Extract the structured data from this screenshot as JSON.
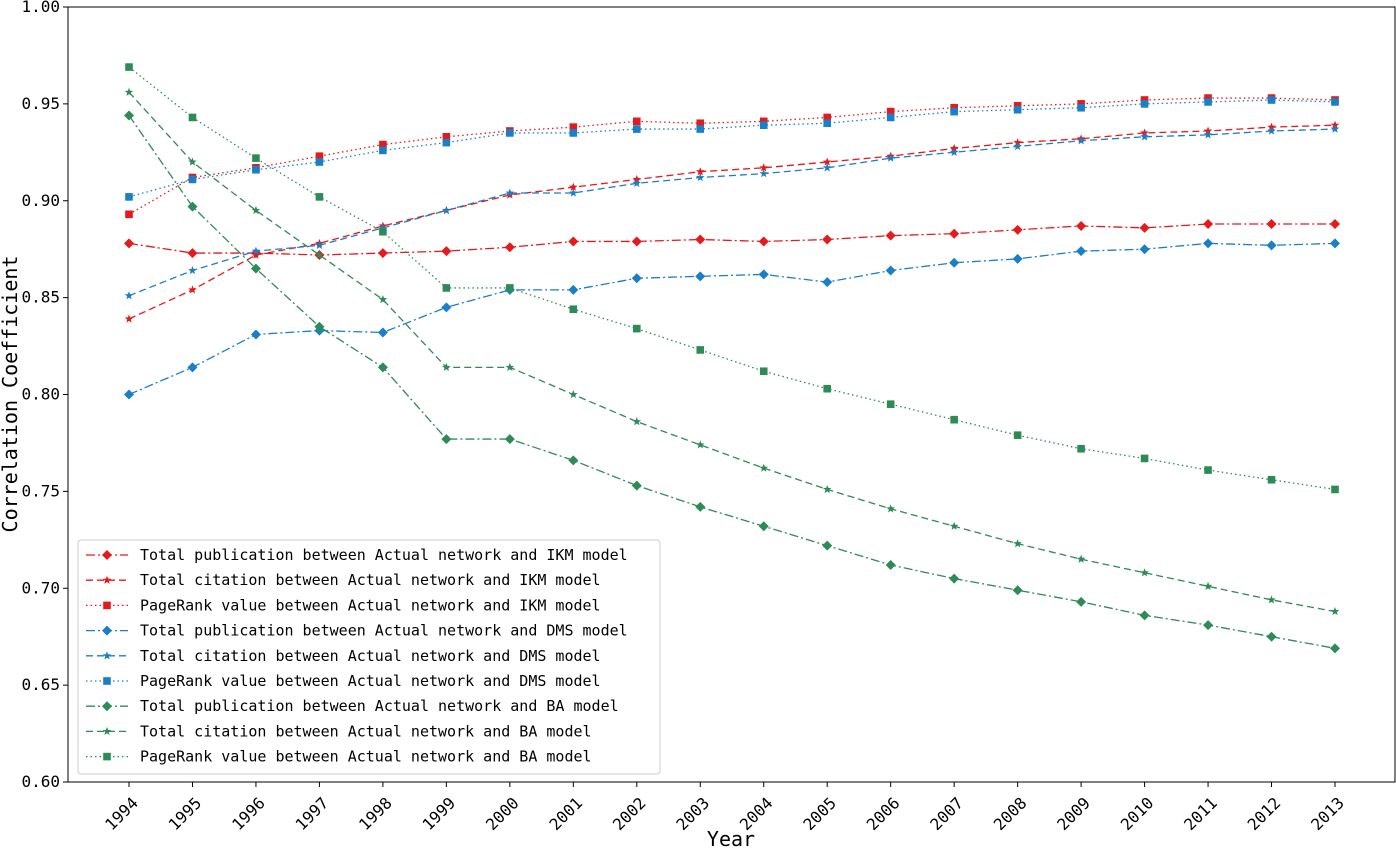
{
  "chart_data": {
    "type": "line",
    "xlabel": "Year",
    "ylabel": "Correlation Coefficient",
    "ylim": [
      0.6,
      1.0
    ],
    "yticks": [
      "0.60",
      "0.65",
      "0.70",
      "0.75",
      "0.80",
      "0.85",
      "0.90",
      "0.95",
      "1.00"
    ],
    "ytick_values": [
      0.6,
      0.65,
      0.7,
      0.75,
      0.8,
      0.85,
      0.9,
      0.95,
      1.0
    ],
    "categories": [
      "1994",
      "1995",
      "1996",
      "1997",
      "1998",
      "1999",
      "2000",
      "2001",
      "2002",
      "2003",
      "2004",
      "2005",
      "2006",
      "2007",
      "2008",
      "2009",
      "2010",
      "2011",
      "2012",
      "2013"
    ],
    "grid": false,
    "legend_position": "lower-left",
    "series": [
      {
        "name": "Total publication between Actual network and IKM model",
        "color": "#e41a1c",
        "dash": "dashdot",
        "marker": "diamond",
        "values": [
          0.878,
          0.873,
          0.873,
          0.872,
          0.873,
          0.874,
          0.876,
          0.879,
          0.879,
          0.88,
          0.879,
          0.88,
          0.882,
          0.883,
          0.885,
          0.887,
          0.886,
          0.888,
          0.888,
          0.888
        ]
      },
      {
        "name": "Total citation between Actual network and IKM model",
        "color": "#e41a1c",
        "dash": "dashed",
        "marker": "star",
        "values": [
          0.839,
          0.854,
          0.872,
          0.878,
          0.887,
          0.895,
          0.903,
          0.907,
          0.911,
          0.915,
          0.917,
          0.92,
          0.923,
          0.927,
          0.93,
          0.932,
          0.935,
          0.936,
          0.938,
          0.939
        ]
      },
      {
        "name": "PageRank value between Actual network and IKM model",
        "color": "#e41a1c",
        "dash": "dotted",
        "marker": "square",
        "values": [
          0.893,
          0.912,
          0.917,
          0.923,
          0.929,
          0.933,
          0.936,
          0.938,
          0.941,
          0.94,
          0.941,
          0.943,
          0.946,
          0.948,
          0.949,
          0.95,
          0.952,
          0.953,
          0.953,
          0.952
        ]
      },
      {
        "name": "Total publication between Actual network and DMS model",
        "color": "#1a7fc7",
        "dash": "dashdot",
        "marker": "diamond",
        "values": [
          0.8,
          0.814,
          0.831,
          0.833,
          0.832,
          0.845,
          0.854,
          0.854,
          0.86,
          0.861,
          0.862,
          0.858,
          0.864,
          0.868,
          0.87,
          0.874,
          0.875,
          0.878,
          0.877,
          0.878
        ]
      },
      {
        "name": "Total citation between Actual network and DMS model",
        "color": "#1a7fc7",
        "dash": "dashed",
        "marker": "star",
        "values": [
          0.851,
          0.864,
          0.874,
          0.877,
          0.886,
          0.895,
          0.904,
          0.904,
          0.909,
          0.912,
          0.914,
          0.917,
          0.922,
          0.925,
          0.928,
          0.931,
          0.933,
          0.934,
          0.936,
          0.937
        ]
      },
      {
        "name": "PageRank value between Actual network and DMS model",
        "color": "#1a7fc7",
        "dash": "dotted",
        "marker": "square",
        "values": [
          0.902,
          0.911,
          0.916,
          0.92,
          0.926,
          0.93,
          0.935,
          0.935,
          0.937,
          0.937,
          0.939,
          0.94,
          0.943,
          0.946,
          0.947,
          0.948,
          0.95,
          0.951,
          0.952,
          0.951
        ]
      },
      {
        "name": "Total publication between Actual network and BA model",
        "color": "#2e8b57",
        "dash": "dashdot",
        "marker": "diamond",
        "values": [
          0.944,
          0.897,
          0.865,
          0.835,
          0.814,
          0.777,
          0.777,
          0.766,
          0.753,
          0.742,
          0.732,
          0.722,
          0.712,
          0.705,
          0.699,
          0.693,
          0.686,
          0.681,
          0.675,
          0.669
        ]
      },
      {
        "name": "Total citation between Actual network and BA model",
        "color": "#2e8b57",
        "dash": "dashed",
        "marker": "star",
        "values": [
          0.956,
          0.92,
          0.895,
          0.872,
          0.849,
          0.814,
          0.814,
          0.8,
          0.786,
          0.774,
          0.762,
          0.751,
          0.741,
          0.732,
          0.723,
          0.715,
          0.708,
          0.701,
          0.694,
          0.688
        ]
      },
      {
        "name": "PageRank value between Actual network and BA model",
        "color": "#2e8b57",
        "dash": "dotted",
        "marker": "square",
        "values": [
          0.969,
          0.943,
          0.922,
          0.902,
          0.884,
          0.855,
          0.855,
          0.844,
          0.834,
          0.823,
          0.812,
          0.803,
          0.795,
          0.787,
          0.779,
          0.772,
          0.767,
          0.761,
          0.756,
          0.751
        ]
      }
    ]
  }
}
